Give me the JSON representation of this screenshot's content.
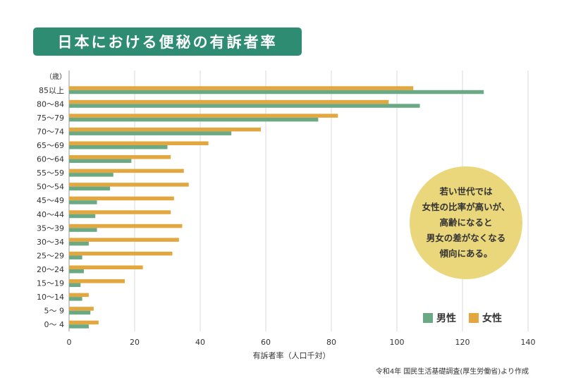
{
  "title": "日本における便秘の有訴者率",
  "note_lines": [
    "若い世代では",
    "女性の比率が高いが、",
    "高齢になると",
    "男女の差がなくなる",
    "傾向にある。"
  ],
  "source": "令和4年 国民生活基礎調査(厚生労働省)より作成",
  "colors": {
    "male": "#6aa984",
    "female": "#e3a73f",
    "title_bg": "#2e8c72",
    "bubble": "#ead67b"
  },
  "chart_data": {
    "type": "bar",
    "orientation": "horizontal",
    "title": "",
    "ylabel": "（歳）",
    "xlabel": "有訴者率（人口千対）",
    "xlim": [
      0,
      140
    ],
    "xticks": [
      0,
      20,
      40,
      60,
      80,
      100,
      120,
      140
    ],
    "grid": true,
    "legend_position": "bottom-right",
    "categories": [
      "85以上",
      "80～84",
      "75～79",
      "70～74",
      "65～69",
      "60～64",
      "55～59",
      "50～54",
      "45～49",
      "40～44",
      "35～39",
      "30～34",
      "25～29",
      "20～24",
      "15～19",
      "10～14",
      "5～ 9",
      "0～ 4"
    ],
    "series": [
      {
        "name": "男性",
        "values": [
          126.5,
          107,
          76,
          49.5,
          30,
          19,
          13.5,
          12.5,
          8.5,
          8,
          8.5,
          6,
          4,
          4.5,
          3.5,
          4,
          6.5,
          6
        ]
      },
      {
        "name": "女性",
        "values": [
          105,
          97.5,
          82,
          58.5,
          42.5,
          31,
          35,
          36.5,
          32,
          31,
          34.5,
          33.5,
          31.5,
          22.5,
          17,
          6,
          7.5,
          9
        ]
      }
    ]
  }
}
